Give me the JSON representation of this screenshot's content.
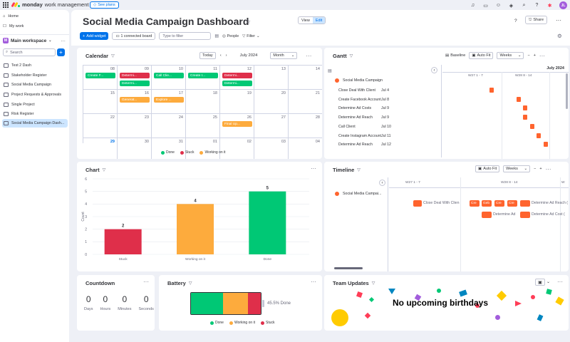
{
  "topbar": {
    "brand_name": "monday",
    "brand_sub": "work management",
    "see_plans": "See plans",
    "avatar": "JL",
    "icons": [
      "bell-icon",
      "inbox-icon",
      "invite-icon",
      "apps-icon",
      "search-icon",
      "help-icon",
      "monday-apps-icon"
    ]
  },
  "sidebar": {
    "home": "Home",
    "my_work": "My work",
    "workspace_badge": "M",
    "workspace": "Main workspace",
    "search_placeholder": "Search",
    "items": [
      {
        "label": "Test 2 Dash"
      },
      {
        "label": "Stakeholder Register"
      },
      {
        "label": "Social Media Campaign"
      },
      {
        "label": "Project Requests & Approvals"
      },
      {
        "label": "Single Project"
      },
      {
        "label": "Risk Register"
      },
      {
        "label": "Social Media Campaign Dash..."
      }
    ]
  },
  "header": {
    "title": "Social Media Campaign Dashboard",
    "view": "View",
    "edit": "Edit",
    "help": "?",
    "share": "Share"
  },
  "toolbar": {
    "add_widget": "Add widget",
    "connected": "1 connected board",
    "filter_placeholder": "Type to filter",
    "people": "People",
    "filter": "Filter"
  },
  "colors": {
    "done": "#00c875",
    "stuck": "#df2f4a",
    "working": "#fdab3d",
    "orange": "#ff642e",
    "accent": "#0073ea"
  },
  "calendar": {
    "title": "Calendar",
    "today": "Today",
    "month_label": "July 2024",
    "view_select": "Month",
    "dates": [
      "08",
      "09",
      "10",
      "11",
      "12",
      "13",
      "14",
      "15",
      "16",
      "17",
      "18",
      "19",
      "20",
      "21",
      "22",
      "23",
      "24",
      "25",
      "26",
      "27",
      "28",
      "29",
      "30",
      "31",
      "01",
      "02",
      "03",
      "04"
    ],
    "events": [
      {
        "label": "Create F...",
        "status": "done"
      },
      {
        "label": "Determi...",
        "status": "stuck"
      },
      {
        "label": "Determi...",
        "status": "done"
      },
      {
        "label": "Call Clie...",
        "status": "done"
      },
      {
        "label": "Create I...",
        "status": "done"
      },
      {
        "label": "Determi...",
        "status": "stuck"
      },
      {
        "label": "Determi...",
        "status": "done"
      },
      {
        "label": "Generat...",
        "status": "working"
      },
      {
        "label": "Explore ...",
        "status": "working"
      },
      {
        "label": "Final Up...",
        "status": "working"
      }
    ],
    "legend": [
      "Done",
      "Stuck",
      "Working on it"
    ]
  },
  "gantt": {
    "title": "Gantt",
    "baseline": "Baseline",
    "auto_fit": "Auto Fit",
    "zoom": "Weeks",
    "group": "Social Media Campaign",
    "month": "July 2024",
    "weeks": [
      "W27 1 - 7",
      "W28 8 - 14"
    ],
    "rows": [
      {
        "name": "Close Deal With Client",
        "date": "Jul 4"
      },
      {
        "name": "Create Facebook Account",
        "date": "Jul 8"
      },
      {
        "name": "Determine Ad Costs",
        "date": "Jul 9"
      },
      {
        "name": "Determine Ad Reach",
        "date": "Jul 9"
      },
      {
        "name": "Call Client",
        "date": "Jul 10"
      },
      {
        "name": "Create Instagram Account",
        "date": "Jul 11"
      },
      {
        "name": "Determine Ad Reach",
        "date": "Jul 12"
      }
    ]
  },
  "chart_data": {
    "type": "bar",
    "title": "Chart",
    "categories": [
      "Stuck",
      "Working on it",
      "Done"
    ],
    "values": [
      2,
      4,
      5
    ],
    "colors": [
      "#df2f4a",
      "#fdab3d",
      "#00c875"
    ],
    "ylabel": "Count",
    "ylim": [
      0,
      6
    ],
    "yticks": [
      0,
      1,
      2,
      3,
      4,
      5,
      6
    ],
    "grid": true
  },
  "timeline": {
    "title": "Timeline",
    "auto_fit": "Auto Fit",
    "zoom": "Weeks",
    "group": "Social Media Campai...",
    "weeks": [
      "W27 1 - 7",
      "W28 8 - 14",
      "W"
    ],
    "labels": [
      "Close Deal With Clien",
      "Cre",
      "Geb",
      "Cre",
      "Cre",
      "Determine Ad Reach (",
      "Determine Ad",
      "Determine Ad Cost ("
    ]
  },
  "countdown": {
    "title": "Countdown",
    "items": [
      {
        "value": "0",
        "label": "Days"
      },
      {
        "value": "0",
        "label": "Hours"
      },
      {
        "value": "0",
        "label": "Minutes"
      },
      {
        "value": "0",
        "label": "Seconds"
      }
    ]
  },
  "battery": {
    "title": "Battery",
    "done_fraction": 0.455,
    "working_fraction": 0.364,
    "stuck_fraction": 0.181,
    "done_label": "45.5% Done",
    "legend": [
      "Done",
      "Working on it",
      "Stuck"
    ]
  },
  "team": {
    "title": "Team Updates",
    "message": "No upcoming birthdays"
  }
}
